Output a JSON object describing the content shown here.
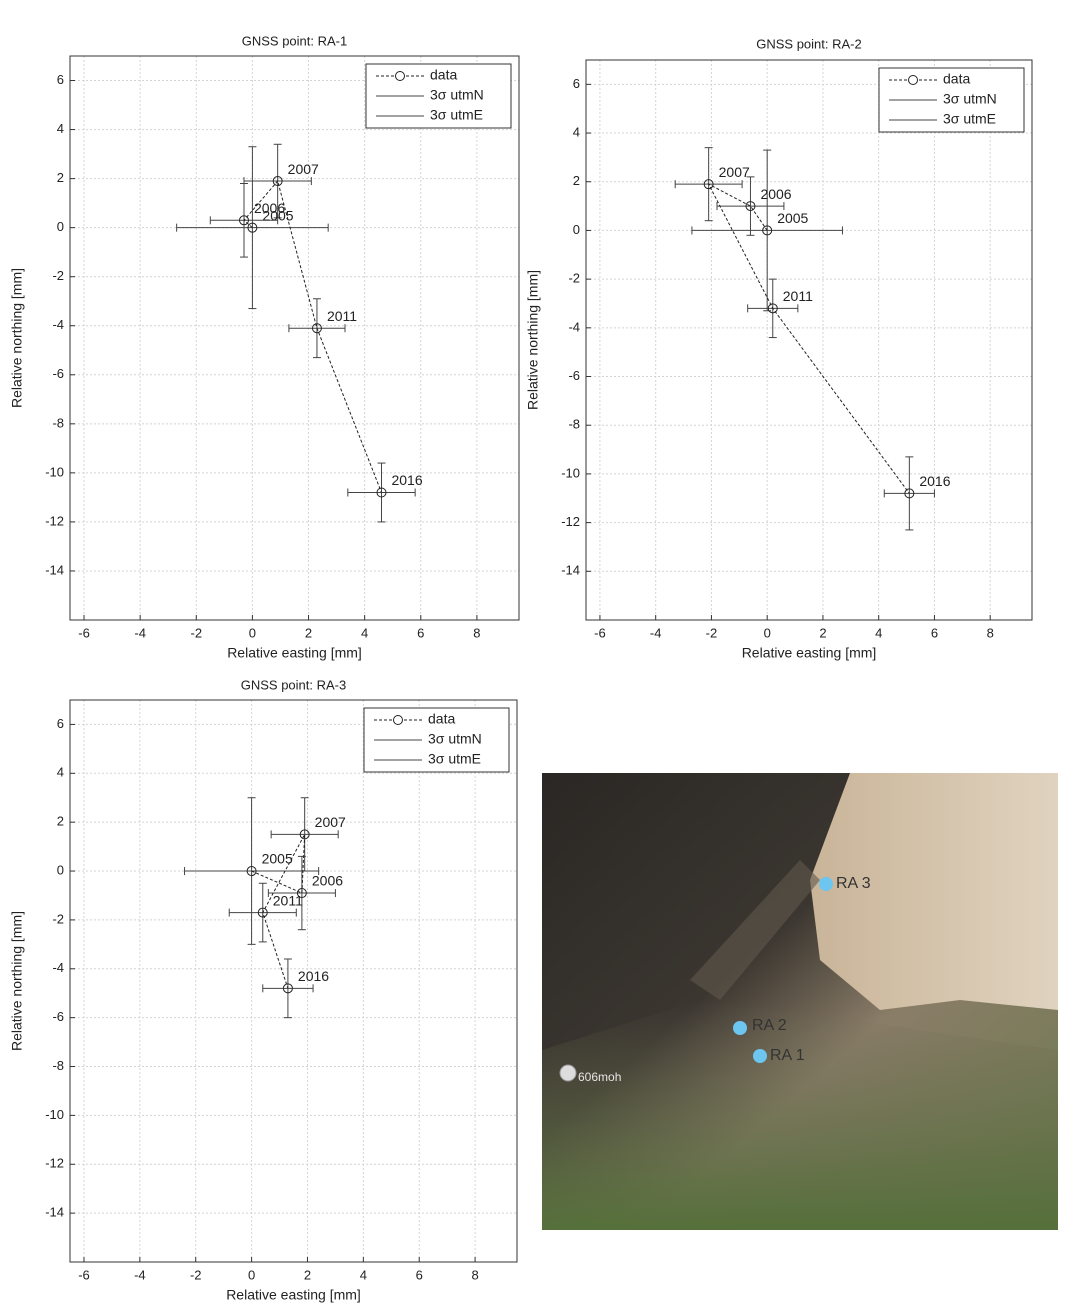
{
  "chart_data": [
    {
      "type": "scatter",
      "title": "GNSS point: RA-1",
      "xlabel": "Relative easting [mm]",
      "ylabel": "Relative northing [mm]",
      "xlim": [
        -6.5,
        9.5
      ],
      "xticks": [
        -6,
        -4,
        -2,
        0,
        2,
        4,
        6,
        8
      ],
      "ylim": [
        -16,
        7
      ],
      "yticks": [
        -14,
        -12,
        -10,
        -8,
        -6,
        -4,
        -2,
        0,
        2,
        4,
        6
      ],
      "grid": true,
      "legend": "upper right",
      "series": [
        {
          "name": "data",
          "color": "#222222",
          "point_labels": [
            "2005",
            "2006",
            "2007",
            "2011",
            "2016"
          ],
          "x": [
            0,
            -0.3,
            0.9,
            2.3,
            4.6
          ],
          "values": [
            0,
            0.3,
            1.9,
            -4.1,
            -10.8
          ]
        },
        {
          "name": "3σ utmN",
          "color": "#444444",
          "values": [
            3.3,
            1.5,
            1.5,
            1.2,
            1.2
          ]
        },
        {
          "name": "3σ utmE",
          "color": "#444444",
          "values": [
            2.7,
            1.2,
            1.2,
            1.0,
            1.2
          ]
        }
      ]
    },
    {
      "type": "scatter",
      "title": "GNSS point: RA-2",
      "xlabel": "Relative easting [mm]",
      "ylabel": "Relative northing [mm]",
      "xlim": [
        -6.5,
        9.5
      ],
      "xticks": [
        -6,
        -4,
        -2,
        0,
        2,
        4,
        6,
        8
      ],
      "ylim": [
        -16,
        7
      ],
      "yticks": [
        -14,
        -12,
        -10,
        -8,
        -6,
        -4,
        -2,
        0,
        2,
        4,
        6
      ],
      "grid": true,
      "legend": "upper right",
      "series": [
        {
          "name": "data",
          "color": "#222222",
          "point_labels": [
            "2005",
            "2006",
            "2007",
            "2011",
            "2016"
          ],
          "x": [
            0,
            -0.6,
            -2.1,
            0.2,
            5.1
          ],
          "values": [
            0,
            1.0,
            1.9,
            -3.2,
            -10.8
          ]
        },
        {
          "name": "3σ utmN",
          "color": "#444444",
          "values": [
            3.3,
            1.2,
            1.5,
            1.2,
            1.5
          ]
        },
        {
          "name": "3σ utmE",
          "color": "#444444",
          "values": [
            2.7,
            1.2,
            1.2,
            0.9,
            0.9
          ]
        }
      ]
    },
    {
      "type": "scatter",
      "title": "GNSS point: RA-3",
      "xlabel": "Relative easting [mm]",
      "ylabel": "Relative northing [mm]",
      "xlim": [
        -6.5,
        9.5
      ],
      "xticks": [
        -6,
        -4,
        -2,
        0,
        2,
        4,
        6,
        8
      ],
      "ylim": [
        -16,
        7
      ],
      "yticks": [
        -14,
        -12,
        -10,
        -8,
        -6,
        -4,
        -2,
        0,
        2,
        4,
        6
      ],
      "grid": true,
      "legend": "upper right",
      "series": [
        {
          "name": "data",
          "color": "#222222",
          "point_labels": [
            "2005",
            "2006",
            "2007",
            "2011",
            "2016"
          ],
          "x": [
            0,
            1.8,
            1.9,
            0.4,
            1.3
          ],
          "values": [
            0,
            -0.9,
            1.5,
            -1.7,
            -4.8
          ]
        },
        {
          "name": "3σ utmN",
          "color": "#444444",
          "values": [
            3.0,
            1.5,
            1.5,
            1.2,
            1.2
          ]
        },
        {
          "name": "3σ utmE",
          "color": "#444444",
          "values": [
            2.4,
            1.2,
            1.2,
            1.2,
            0.9
          ]
        }
      ]
    }
  ],
  "photo": {
    "labels": [
      "RA 3",
      "RA 2",
      "RA 1",
      "606moh"
    ]
  }
}
